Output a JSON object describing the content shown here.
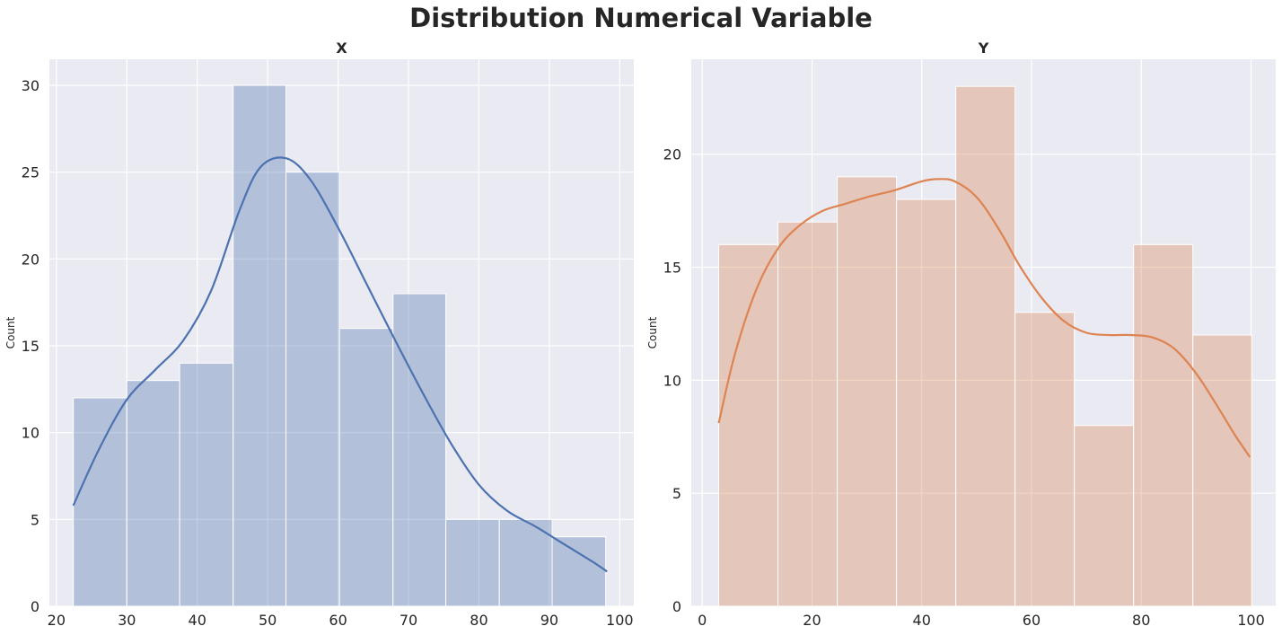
{
  "title": "Distribution Numerical Variable",
  "chart_data": [
    {
      "type": "bar",
      "subtype": "histogram-with-kde",
      "title": "X",
      "xlabel": "",
      "ylabel": "Count",
      "color": "#4c72b0",
      "xlim": [
        19,
        102
      ],
      "ylim": [
        0,
        31.5
      ],
      "xticks": [
        20,
        30,
        40,
        50,
        60,
        70,
        80,
        90,
        100
      ],
      "yticks": [
        0,
        5,
        10,
        15,
        20,
        25,
        30
      ],
      "bin_edges": [
        22.4,
        30.0,
        37.5,
        45.1,
        52.6,
        60.2,
        67.8,
        75.3,
        82.9,
        90.4,
        98.0
      ],
      "values": [
        12,
        13,
        14,
        30,
        25,
        16,
        18,
        5,
        5,
        4
      ],
      "kde": {
        "x": [
          22.4,
          26,
          30,
          34,
          38,
          42,
          46,
          49,
          52.6,
          56,
          60,
          64,
          68,
          72,
          76,
          80,
          84,
          88,
          92,
          96,
          98.2
        ],
        "y": [
          5.8,
          9.0,
          11.9,
          13.6,
          15.3,
          18.2,
          22.8,
          25.3,
          25.8,
          24.6,
          21.8,
          18.6,
          15.4,
          12.3,
          9.4,
          7.0,
          5.5,
          4.6,
          3.6,
          2.6,
          2.0
        ]
      }
    },
    {
      "type": "bar",
      "subtype": "histogram-with-kde",
      "title": "Y",
      "xlabel": "",
      "ylabel": "Count",
      "color": "#dd8452",
      "xlim": [
        -2,
        104.5
      ],
      "ylim": [
        0,
        24.2
      ],
      "xticks": [
        0,
        20,
        40,
        60,
        80,
        100
      ],
      "yticks": [
        0,
        5,
        10,
        15,
        20
      ],
      "bin_edges": [
        3.0,
        13.8,
        24.6,
        35.4,
        46.2,
        57.0,
        67.8,
        78.6,
        89.4,
        100.2
      ],
      "values": [
        16,
        17,
        19,
        18,
        23,
        13,
        8,
        16,
        12
      ],
      "kde": {
        "x": [
          3,
          6,
          10,
          14,
          18,
          22,
          26,
          30,
          35,
          40,
          43,
          46,
          50,
          54,
          58,
          62,
          66,
          70,
          74,
          78,
          82,
          86,
          90,
          94,
          97,
          99.8
        ],
        "y": [
          8.1,
          11.2,
          14.1,
          15.9,
          16.9,
          17.5,
          17.8,
          18.1,
          18.4,
          18.8,
          18.9,
          18.8,
          18.1,
          16.7,
          15.0,
          13.6,
          12.6,
          12.1,
          12.0,
          12.0,
          11.9,
          11.4,
          10.3,
          8.8,
          7.6,
          6.6
        ]
      }
    }
  ]
}
